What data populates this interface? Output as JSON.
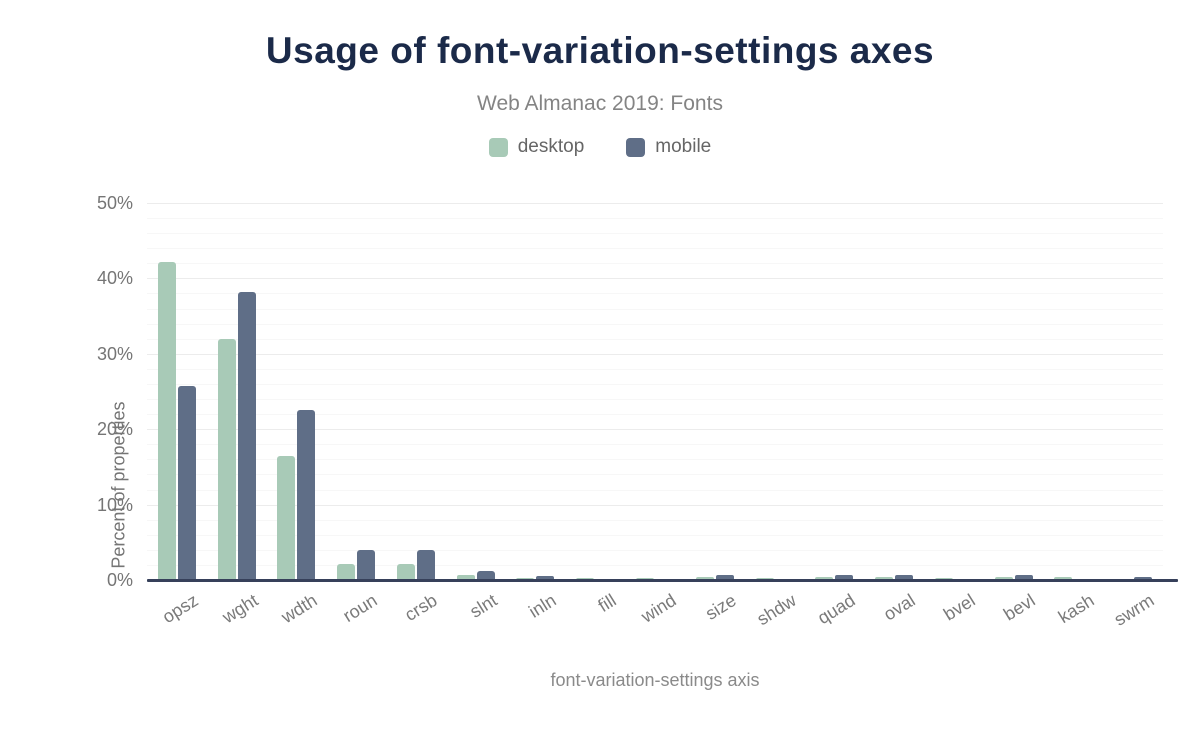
{
  "title": "Usage of font-variation-settings axes",
  "subtitle": "Web Almanac 2019: Fonts",
  "chart_data": {
    "type": "bar",
    "title": "Usage of font-variation-settings axes",
    "subtitle": "Web Almanac 2019: Fonts",
    "categories": [
      "opsz",
      "wght",
      "wdth",
      "roun",
      "crsb",
      "slnt",
      "inln",
      "fill",
      "wind",
      "size",
      "shdw",
      "quad",
      "oval",
      "bvel",
      "bevl",
      "kash",
      "swrm"
    ],
    "series": [
      {
        "name": "desktop",
        "color": "#a8cab7",
        "values": [
          42.2,
          31.9,
          16.4,
          2.1,
          2.1,
          0.7,
          0.3,
          0.3,
          0.3,
          0.4,
          0.3,
          0.4,
          0.4,
          0.3,
          0.4,
          0.4,
          0.1
        ]
      },
      {
        "name": "mobile",
        "color": "#5f6e87",
        "values": [
          25.7,
          38.2,
          22.6,
          4.0,
          4.0,
          1.2,
          0.5,
          0.1,
          0.1,
          0.7,
          0.1,
          0.7,
          0.7,
          0.1,
          0.7,
          0.1,
          0.4
        ]
      }
    ],
    "xlabel": "font-variation-settings axis",
    "ylabel": "Percent of properties",
    "ylim": [
      0,
      50
    ],
    "yticks": [
      0,
      10,
      20,
      30,
      40,
      50
    ],
    "ytick_suffix": "%",
    "minor_grid_step": 2,
    "grid": "horizontal",
    "legend_position": "top-center",
    "x_label_rotation": -32
  }
}
